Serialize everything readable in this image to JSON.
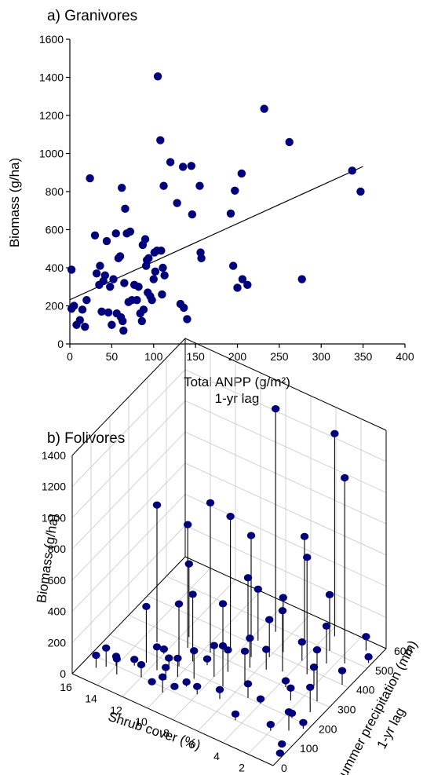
{
  "chart_data": [
    {
      "panel": "a",
      "type": "scatter",
      "title": "a) Granivores",
      "xlabel": "Total ANPP (g/m²)",
      "xlabel_line2": "1-yr lag",
      "ylabel": "Biomass (g/ha)",
      "xlim": [
        0,
        400
      ],
      "ylim": [
        0,
        1600
      ],
      "xticks": [
        0,
        50,
        100,
        150,
        200,
        250,
        300,
        350,
        400
      ],
      "yticks": [
        0,
        200,
        400,
        600,
        800,
        1000,
        1200,
        1400,
        1600
      ],
      "marker_color": "#00007a",
      "line_color": "#000000",
      "regression_line": {
        "x": [
          0,
          350
        ],
        "y": [
          232,
          932
        ]
      },
      "points": [
        [
          2,
          390
        ],
        [
          2,
          185
        ],
        [
          5,
          200
        ],
        [
          8,
          100
        ],
        [
          12,
          125
        ],
        [
          15,
          180
        ],
        [
          18,
          90
        ],
        [
          20,
          230
        ],
        [
          24,
          870
        ],
        [
          30,
          570
        ],
        [
          32,
          370
        ],
        [
          35,
          310
        ],
        [
          36,
          410
        ],
        [
          38,
          170
        ],
        [
          40,
          330
        ],
        [
          42,
          360
        ],
        [
          44,
          540
        ],
        [
          46,
          165
        ],
        [
          48,
          300
        ],
        [
          50,
          100
        ],
        [
          52,
          340
        ],
        [
          55,
          580
        ],
        [
          56,
          160
        ],
        [
          58,
          450
        ],
        [
          60,
          460
        ],
        [
          61,
          140
        ],
        [
          62,
          820
        ],
        [
          63,
          120
        ],
        [
          64,
          70
        ],
        [
          65,
          320
        ],
        [
          66,
          710
        ],
        [
          68,
          580
        ],
        [
          70,
          220
        ],
        [
          72,
          590
        ],
        [
          74,
          230
        ],
        [
          77,
          310
        ],
        [
          80,
          230
        ],
        [
          82,
          300
        ],
        [
          84,
          160
        ],
        [
          86,
          120
        ],
        [
          87,
          520
        ],
        [
          88,
          180
        ],
        [
          90,
          550
        ],
        [
          91,
          410
        ],
        [
          92,
          440
        ],
        [
          93,
          270
        ],
        [
          94,
          450
        ],
        [
          96,
          250
        ],
        [
          98,
          230
        ],
        [
          100,
          340
        ],
        [
          101,
          480
        ],
        [
          102,
          380
        ],
        [
          104,
          490
        ],
        [
          105,
          1405
        ],
        [
          108,
          1070
        ],
        [
          109,
          490
        ],
        [
          110,
          260
        ],
        [
          111,
          400
        ],
        [
          112,
          830
        ],
        [
          113,
          360
        ],
        [
          120,
          955
        ],
        [
          128,
          740
        ],
        [
          132,
          210
        ],
        [
          135,
          930
        ],
        [
          136,
          190
        ],
        [
          140,
          130
        ],
        [
          145,
          935
        ],
        [
          146,
          680
        ],
        [
          155,
          830
        ],
        [
          156,
          480
        ],
        [
          157,
          450
        ],
        [
          192,
          685
        ],
        [
          195,
          410
        ],
        [
          197,
          805
        ],
        [
          200,
          295
        ],
        [
          205,
          895
        ],
        [
          206,
          340
        ],
        [
          212,
          310
        ],
        [
          232,
          1235
        ],
        [
          262,
          1060
        ],
        [
          277,
          340
        ],
        [
          337,
          910
        ],
        [
          347,
          800
        ]
      ]
    },
    {
      "panel": "b",
      "type": "scatter3d",
      "title": "b) Folivores",
      "zlabel": "Biomass (g/ha)",
      "xlabel": "Shrub cover (%)",
      "ylabel": "Summer precipitation (mm)",
      "ylabel_line2": "1-yr lag",
      "xlim": [
        0,
        16
      ],
      "ylim": [
        0,
        600
      ],
      "zlim": [
        0,
        1400
      ],
      "xticks": [
        0,
        2,
        4,
        6,
        8,
        10,
        12,
        14,
        16
      ],
      "yticks": [
        0,
        100,
        200,
        300,
        400,
        500,
        600
      ],
      "zticks": [
        0,
        200,
        400,
        600,
        800,
        1000,
        1200,
        1400
      ],
      "marker_color": "#00007a",
      "stem_color": "#000000",
      "points": [
        [
          15,
          60,
          80
        ],
        [
          14.5,
          80,
          120
        ],
        [
          14,
          100,
          60
        ],
        [
          13.5,
          70,
          100
        ],
        [
          13,
          130,
          40
        ],
        [
          13,
          250,
          880
        ],
        [
          12.5,
          160,
          360
        ],
        [
          12,
          100,
          80
        ],
        [
          12,
          220,
          30
        ],
        [
          11.5,
          150,
          150
        ],
        [
          11,
          180,
          60
        ],
        [
          11,
          90,
          20
        ],
        [
          11.5,
          320,
          470
        ],
        [
          11,
          280,
          790
        ],
        [
          10.5,
          200,
          400
        ],
        [
          10.5,
          130,
          80
        ],
        [
          10,
          160,
          120
        ],
        [
          10,
          240,
          430
        ],
        [
          10,
          80,
          100
        ],
        [
          9.5,
          300,
          960
        ],
        [
          9.5,
          110,
          20
        ],
        [
          9,
          180,
          180
        ],
        [
          9,
          250,
          40
        ],
        [
          9,
          140,
          30
        ],
        [
          8.5,
          340,
          860
        ],
        [
          8.5,
          300,
          350
        ],
        [
          8,
          220,
          200
        ],
        [
          8,
          130,
          50
        ],
        [
          8,
          400,
          410
        ],
        [
          7.5,
          260,
          140
        ],
        [
          7.5,
          420,
          330
        ],
        [
          7,
          200,
          260
        ],
        [
          7,
          350,
          780
        ],
        [
          7,
          480,
          1430
        ],
        [
          6.5,
          310,
          190
        ],
        [
          6.5,
          150,
          60
        ],
        [
          6,
          380,
          240
        ],
        [
          6,
          250,
          200
        ],
        [
          5.5,
          420,
          350
        ],
        [
          5.5,
          330,
          130
        ],
        [
          5,
          500,
          660
        ],
        [
          5,
          200,
          90
        ],
        [
          4.5,
          350,
          390
        ],
        [
          4.5,
          100,
          40
        ],
        [
          4,
          420,
          120
        ],
        [
          4,
          200,
          30
        ],
        [
          3.5,
          300,
          40
        ],
        [
          3.5,
          560,
          1300
        ],
        [
          3,
          380,
          750
        ],
        [
          3,
          500,
          360
        ],
        [
          2.5,
          260,
          80
        ],
        [
          2.5,
          450,
          240
        ],
        [
          2,
          120,
          40
        ],
        [
          2,
          350,
          120
        ],
        [
          1.5,
          200,
          30
        ],
        [
          1.5,
          480,
          1190
        ],
        [
          1,
          300,
          330
        ],
        [
          1,
          150,
          120
        ],
        [
          1,
          560,
          90
        ],
        [
          0.8,
          250,
          160
        ],
        [
          0.5,
          80,
          20
        ],
        [
          0.5,
          400,
          90
        ],
        [
          0.3,
          180,
          40
        ],
        [
          0.2,
          520,
          40
        ],
        [
          0.2,
          50,
          10
        ]
      ]
    }
  ]
}
